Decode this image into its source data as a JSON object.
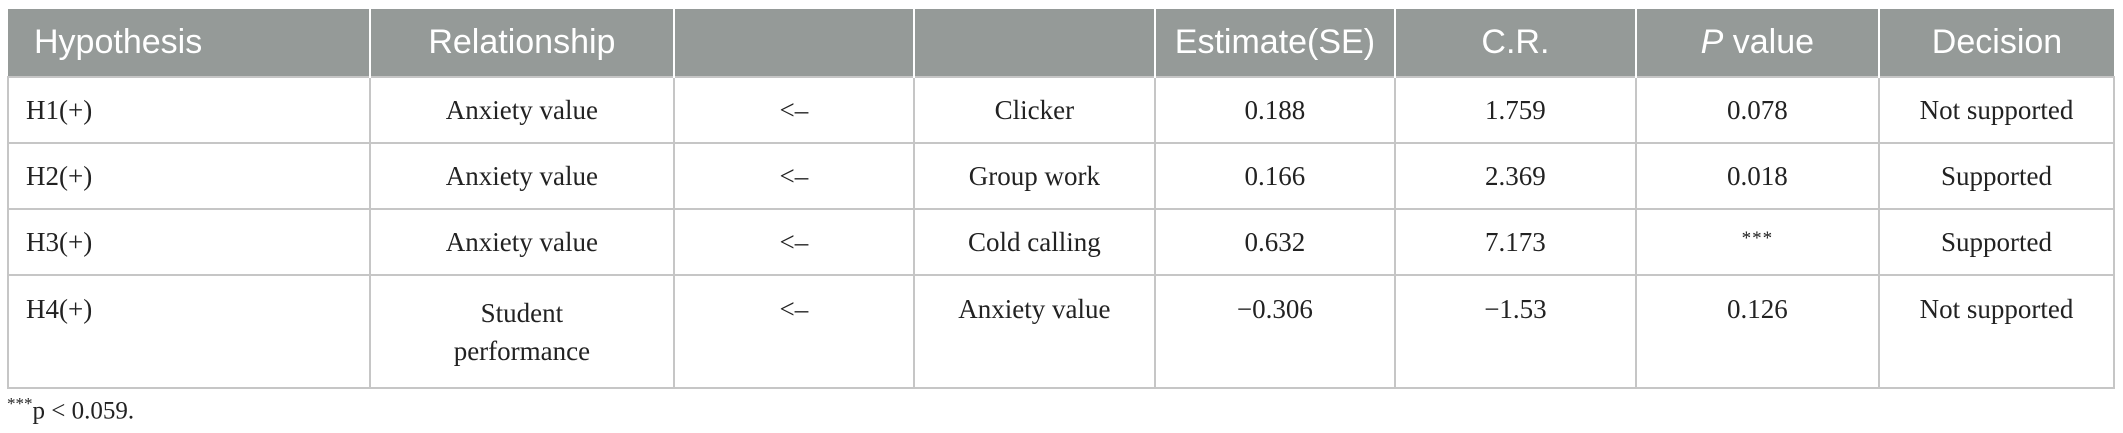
{
  "table": {
    "headers": {
      "hypothesis": "Hypothesis",
      "relationship": "Relationship",
      "blank1": "",
      "blank2": "",
      "estimate": "Estimate(SE)",
      "cr": "C.R.",
      "p_italic": "P",
      "p_rest": " value",
      "decision": "Decision"
    },
    "rows": [
      {
        "hypothesis": "H1(+)",
        "dependent": "Anxiety value",
        "arrow": "<–",
        "independent": "Clicker",
        "estimate": "0.188",
        "cr": "1.759",
        "p": "0.078",
        "decision": "Not supported"
      },
      {
        "hypothesis": "H2(+)",
        "dependent": "Anxiety value",
        "arrow": "<–",
        "independent": "Group work",
        "estimate": "0.166",
        "cr": "2.369",
        "p": "0.018",
        "decision": "Supported"
      },
      {
        "hypothesis": "H3(+)",
        "dependent": "Anxiety value",
        "arrow": "<–",
        "independent": "Cold calling",
        "estimate": "0.632",
        "cr": "7.173",
        "p": "***",
        "decision": "Supported"
      },
      {
        "hypothesis": "H4(+)",
        "dependent_line1": "Student",
        "dependent_line2": "performance",
        "arrow": "<–",
        "independent": "Anxiety value",
        "estimate": "−0.306",
        "cr": "−1.53",
        "p": "0.126",
        "decision": "Not supported"
      }
    ]
  },
  "footnote": {
    "marker": "***",
    "text": "p < 0.059."
  }
}
